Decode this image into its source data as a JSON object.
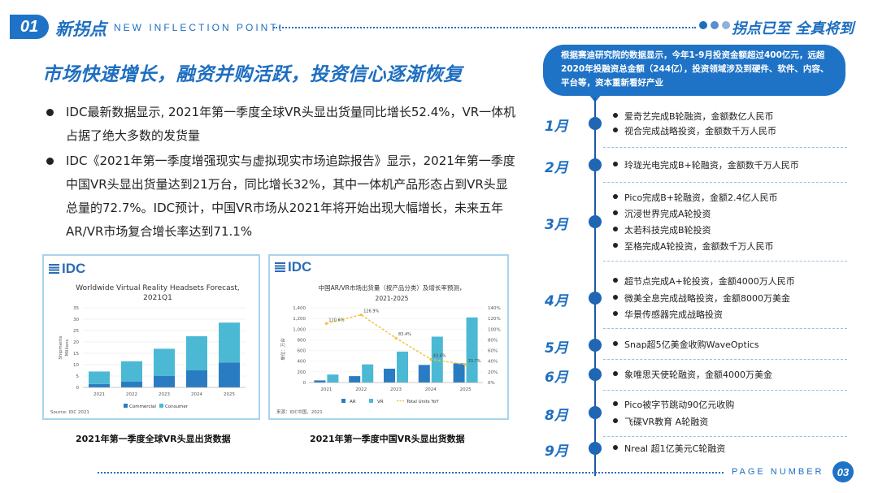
{
  "header": {
    "number": "01",
    "title": "新拐点",
    "subtitle": "NEW INFLECTION POINTt",
    "right_title": "拐点已至 全真将到"
  },
  "main": {
    "title": "市场快速增长，融资并购活跃，投资信心逐渐恢复",
    "bullets": [
      "IDC最新数据显示, 2021年第一季度全球VR头显出货量同比增长52.4%，VR一体机占据了绝大多数的发货量",
      "IDC《2021年第一季度增强现实与虚拟现实市场追踪报告》显示，2021年第一季度中国VR头显出货量达到21万台，同比增长32%，其中一体机产品形态占到VR头显总量的72.7%。IDC预计，中国VR市场从2021年将开始出现大幅增长，未来五年AR/VR市场复合增长率达到71.1%"
    ]
  },
  "chart_data": [
    {
      "type": "bar",
      "logo": "IDC",
      "title": "Worldwide Virtual Reality Headsets Forecast, 2021Q1",
      "ylabel": "Shipments Millions",
      "categories": [
        "2021",
        "2022",
        "2023",
        "2024",
        "2025"
      ],
      "ylim": [
        0,
        35
      ],
      "yticks": [
        "0",
        "5",
        "10",
        "15",
        "20",
        "25",
        "30",
        "35"
      ],
      "stacked": true,
      "series": [
        {
          "name": "Commercial",
          "color": "#2a7cc2",
          "values": [
            1.5,
            2.5,
            5,
            7.5,
            11
          ]
        },
        {
          "name": "Consumer",
          "color": "#4cb9d4",
          "values": [
            5.5,
            9,
            12,
            15,
            17.5
          ]
        }
      ],
      "legend": "bottom",
      "source": "Source: IDC 2021",
      "caption": "2021年第一季度全球VR头显出货数据"
    },
    {
      "type": "bar",
      "logo": "IDC",
      "title": "中国AR/VR市场出货量（按产品分类）及增长率预测，2021-2025",
      "ylabel": "单位：万台",
      "categories": [
        "2021",
        "2022",
        "2023",
        "2024",
        "2025"
      ],
      "ylim": [
        0,
        1400
      ],
      "yticks": [
        "0",
        "200",
        "400",
        "600",
        "800",
        "1,000",
        "1,200",
        "1,400"
      ],
      "y2ticks": [
        "0%",
        "20%",
        "40%",
        "60%",
        "80%",
        "100%",
        "120%",
        "140%"
      ],
      "series": [
        {
          "name": "AR",
          "color": "#2a7cc2",
          "values": [
            40,
            120,
            260,
            330,
            360
          ]
        },
        {
          "name": "VR",
          "color": "#4cb9d4",
          "values": [
            150,
            340,
            580,
            860,
            1220
          ]
        },
        {
          "name": "Total Units YoY",
          "color": "#f2c232",
          "values": [
            110.6,
            126.9,
            83.4,
            43.6,
            33.7
          ]
        }
      ],
      "yoy_labels": [
        "110.6%",
        "126.9%",
        "83.4%",
        "43.6%",
        "33.7%"
      ],
      "legend": "bottom",
      "source": "来源：IDC中国，2021",
      "caption": "2021年第一季度中国VR头显出货数据"
    }
  ],
  "callout": "根据赛迪研究院的数据显示，今年1-9月投资金额超过400亿元，远超2020年投融资总金额（244亿），投资领域涉及到硬件、软件、内容、平台等，资本重新看好产业",
  "timeline": [
    {
      "month": "1月",
      "items": [
        "爱奇艺完成B轮融资，金额数亿人民币",
        "视合完成战略投资，金额数千万人民币"
      ]
    },
    {
      "month": "2月",
      "items": [
        "玲珑光电完成B+轮融资，金额数千万人民币"
      ]
    },
    {
      "month": "3月",
      "items": [
        "Pico完成B+轮融资，金额2.4亿人民币",
        "沉浸世界完成A轮投资",
        "太若科技完成B轮投资",
        "至格完成A轮投资，金额数千万人民币"
      ]
    },
    {
      "month": "4月",
      "items": [
        "超节点完成A+轮投资，金额4000万人民币",
        "微美全息完成战略投资，金额8000万美金",
        "华景传感器完成战略投资"
      ]
    },
    {
      "month": "5月",
      "items": [
        "Snap超5亿美金收购WaveOptics"
      ]
    },
    {
      "month": "6月",
      "items": [
        "象唯思天使轮融资，金额4000万美金"
      ]
    },
    {
      "month": "8月",
      "items": [
        "Pico被字节跳动90亿元收购",
        "飞碟VR教育 A轮融资"
      ]
    },
    {
      "month": "9月",
      "items": [
        "Nreal 超1亿美元C轮融资"
      ]
    }
  ],
  "footer": {
    "label": "PAGE NUMBER",
    "page": "03"
  }
}
